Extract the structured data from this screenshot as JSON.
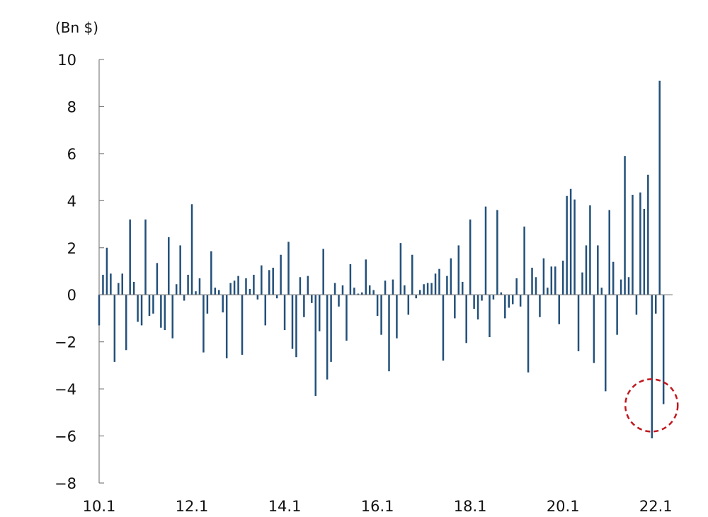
{
  "chart_data": {
    "type": "bar",
    "unit_label": "(Bn $)",
    "ylim": [
      -8,
      10
    ],
    "y_ticks": [
      10,
      8,
      6,
      4,
      2,
      0,
      -2,
      -4,
      -6,
      -8
    ],
    "y_tick_labels": [
      "10",
      "8",
      "6",
      "4",
      "2",
      "0",
      "−2",
      "−4",
      "−6",
      "−8"
    ],
    "x_tick_labels": [
      "10.1",
      "12.1",
      "14.1",
      "16.1",
      "18.1",
      "20.1",
      "22.1"
    ],
    "grid": false,
    "colors": {
      "bar": "#23507a",
      "axis": "#808080",
      "highlight": "#c0181e"
    },
    "annotation": {
      "type": "dashed-circle",
      "marks_month": "22.1"
    },
    "months": [
      "10.1",
      "10.2",
      "10.3",
      "10.4",
      "10.5",
      "10.6",
      "10.7",
      "10.8",
      "10.9",
      "10.10",
      "10.11",
      "10.12",
      "11.1",
      "11.2",
      "11.3",
      "11.4",
      "11.5",
      "11.6",
      "11.7",
      "11.8",
      "11.9",
      "11.10",
      "11.11",
      "11.12",
      "12.1",
      "12.2",
      "12.3",
      "12.4",
      "12.5",
      "12.6",
      "12.7",
      "12.8",
      "12.9",
      "12.10",
      "12.11",
      "12.12",
      "13.1",
      "13.2",
      "13.3",
      "13.4",
      "13.5",
      "13.6",
      "13.7",
      "13.8",
      "13.9",
      "13.10",
      "13.11",
      "13.12",
      "14.1",
      "14.2",
      "14.3",
      "14.4",
      "14.5",
      "14.6",
      "14.7",
      "14.8",
      "14.9",
      "14.10",
      "14.11",
      "14.12",
      "15.1",
      "15.2",
      "15.3",
      "15.4",
      "15.5",
      "15.6",
      "15.7",
      "15.8",
      "15.9",
      "15.10",
      "15.11",
      "15.12",
      "16.1",
      "16.2",
      "16.3",
      "16.4",
      "16.5",
      "16.6",
      "16.7",
      "16.8",
      "16.9",
      "16.10",
      "16.11",
      "16.12",
      "17.1",
      "17.2",
      "17.3",
      "17.4",
      "17.5",
      "17.6",
      "17.7",
      "17.8",
      "17.9",
      "17.10",
      "17.11",
      "17.12",
      "18.1",
      "18.2",
      "18.3",
      "18.4",
      "18.5",
      "18.6",
      "18.7",
      "18.8",
      "18.9",
      "18.10",
      "18.11",
      "18.12",
      "19.1",
      "19.2",
      "19.3",
      "19.4",
      "19.5",
      "19.6",
      "19.7",
      "19.8",
      "19.9",
      "19.10",
      "19.11",
      "19.12",
      "20.1",
      "20.2",
      "20.3",
      "20.4",
      "20.5",
      "20.6",
      "20.7",
      "20.8",
      "20.9",
      "20.10",
      "20.11",
      "20.12",
      "21.1",
      "21.2",
      "21.3",
      "21.4",
      "21.5",
      "21.6",
      "21.7",
      "21.8",
      "21.9",
      "21.10",
      "21.11",
      "21.12",
      "22.1",
      "22.2",
      "22.3",
      "22.4"
    ],
    "values": [
      -1.3,
      0.85,
      2.0,
      0.9,
      -2.85,
      0.5,
      0.9,
      -2.35,
      3.2,
      0.55,
      -1.15,
      -1.3,
      3.2,
      -0.9,
      -0.8,
      1.35,
      -1.4,
      -1.5,
      2.45,
      -1.85,
      0.45,
      2.1,
      -0.25,
      0.85,
      3.85,
      0.15,
      0.7,
      -2.45,
      -0.8,
      1.85,
      0.3,
      0.2,
      -0.75,
      -2.7,
      0.5,
      0.6,
      0.8,
      -2.55,
      0.7,
      0.25,
      0.85,
      -0.2,
      1.25,
      -1.3,
      1.05,
      1.15,
      -0.15,
      1.7,
      -1.5,
      2.25,
      -2.3,
      -2.65,
      0.75,
      -0.95,
      0.8,
      -0.35,
      -4.3,
      -1.55,
      1.95,
      -3.6,
      -2.85,
      0.5,
      -0.5,
      0.4,
      -1.95,
      1.3,
      0.3,
      0.05,
      0.1,
      1.5,
      0.4,
      0.2,
      -0.9,
      -1.7,
      0.6,
      -3.25,
      0.65,
      -1.85,
      2.2,
      0.4,
      -0.85,
      1.7,
      -0.15,
      0.2,
      0.45,
      0.5,
      0.5,
      0.9,
      1.1,
      -2.8,
      0.8,
      1.55,
      -1.0,
      2.1,
      0.55,
      -2.05,
      3.2,
      -0.6,
      -1.05,
      -0.25,
      3.75,
      -1.8,
      -0.2,
      3.6,
      0.1,
      -1.0,
      -0.55,
      -0.4,
      0.7,
      -0.5,
      2.9,
      -3.3,
      1.15,
      0.75,
      -0.95,
      1.55,
      0.3,
      1.2,
      1.2,
      -1.25,
      1.45,
      4.2,
      4.5,
      4.05,
      -2.4,
      0.95,
      2.1,
      3.8,
      -2.9,
      2.1,
      0.3,
      -4.1,
      3.6,
      1.4,
      -1.7,
      0.65,
      5.9,
      0.75,
      4.25,
      -0.85,
      4.35,
      3.65,
      5.1,
      -6.1,
      -0.8,
      9.1,
      -4.65,
      0.0
    ]
  }
}
